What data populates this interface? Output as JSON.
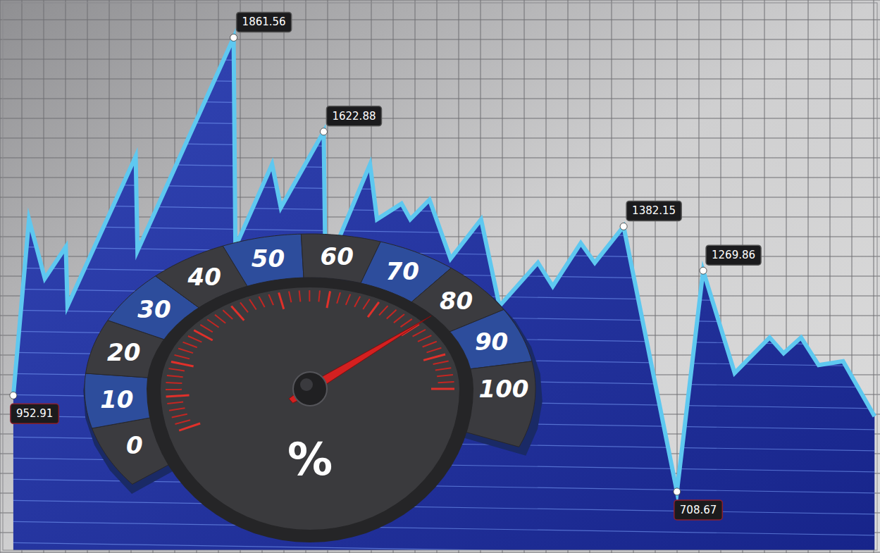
{
  "chart_data": [
    {
      "type": "area",
      "x": [
        1.2,
        3.0,
        4.8,
        7.2,
        7.4,
        15.2,
        15.4,
        26.4,
        26.6,
        30.8,
        31.8,
        36.7,
        36.9,
        42.0,
        42.8,
        45.6,
        46.6,
        48.8,
        51.2,
        54.7,
        56.8,
        61.2,
        62.9,
        66.1,
        67.7,
        71.0,
        77.1,
        80.1,
        83.7,
        87.7,
        89.3,
        91.3,
        93.3,
        96.1,
        99.7
      ],
      "values": [
        952.91,
        1400,
        1250,
        1330,
        1180,
        1560,
        1320,
        1861.56,
        1330,
        1540,
        1430,
        1622.88,
        1270,
        1540,
        1400,
        1440,
        1400,
        1450,
        1300,
        1400,
        1180,
        1290,
        1230,
        1340,
        1290,
        1382.15,
        708.67,
        1269.86,
        1010,
        1100,
        1060,
        1100,
        1030,
        1040,
        900
      ],
      "value_labels": [
        "952.91",
        null,
        null,
        null,
        null,
        null,
        null,
        "1861.56",
        null,
        null,
        null,
        "1622.88",
        null,
        null,
        null,
        null,
        null,
        null,
        null,
        null,
        null,
        null,
        null,
        null,
        null,
        "1382.15",
        "708.67",
        "1269.86",
        null,
        null,
        null,
        null,
        null,
        null,
        null
      ],
      "xlim": [
        0,
        100
      ],
      "ylim": [
        560,
        1950
      ],
      "color": "#5ec8f0",
      "tick_labels": false
    },
    {
      "type": "gauge",
      "ylabel": "%",
      "values": [
        80
      ],
      "ylim": [
        0,
        100
      ],
      "yticks": [
        0,
        10,
        20,
        30,
        40,
        50,
        60,
        70,
        80,
        90,
        100
      ],
      "color": "#d42020"
    }
  ]
}
